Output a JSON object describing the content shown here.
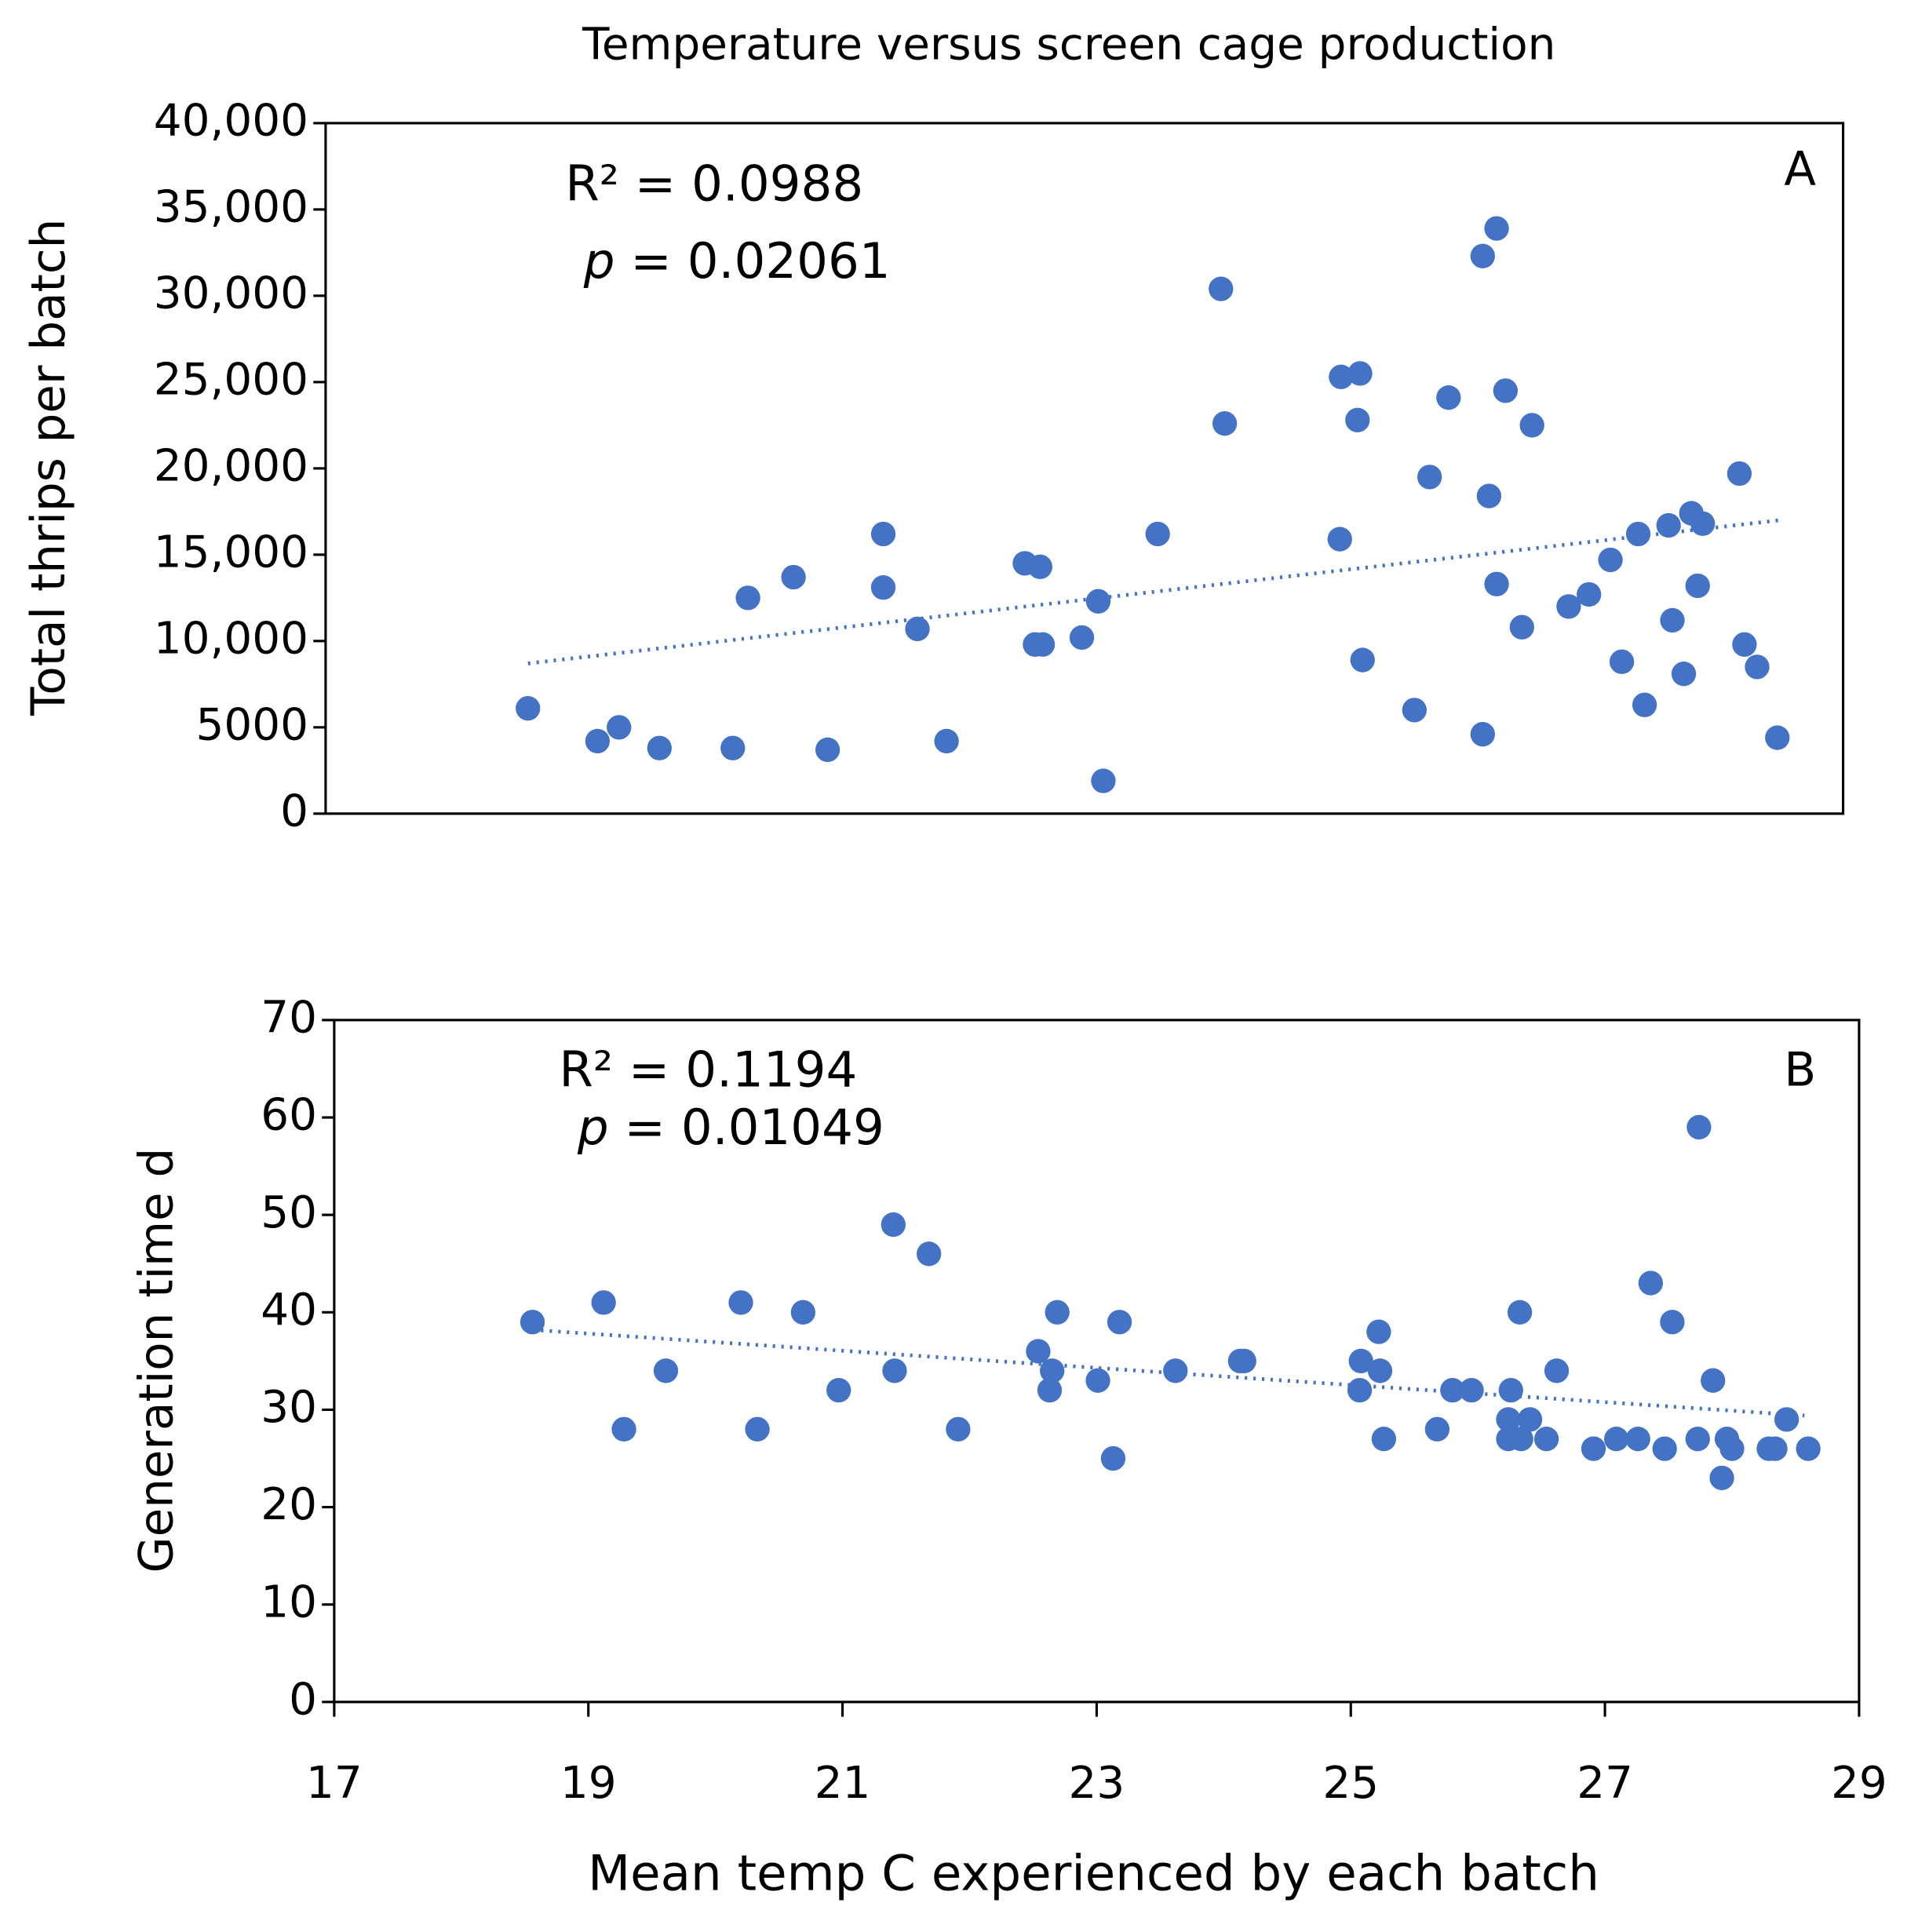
{
  "chart_data": [
    {
      "type": "scatter",
      "title": "Temperature versus screen cage production",
      "y_label": "Total thrips per batch",
      "annotations": [
        "R² = 0.0988",
        "p = 0.02061"
      ],
      "panel_label": "A",
      "color": "#4472c4",
      "xlim": [
        17,
        29
      ],
      "ylim": [
        0,
        40000
      ],
      "yticks": [
        0,
        5000,
        {
          "value": 10000,
          "label": "10,000"
        },
        {
          "value": 15000,
          "label": "15,000"
        },
        {
          "value": 20000,
          "label": "20,000"
        },
        {
          "value": 25000,
          "label": "25,000"
        },
        {
          "value": 30000,
          "label": "30,000"
        },
        {
          "value": 35000,
          "label": "35,000"
        },
        {
          "value": 40000,
          "label": "40,000"
        }
      ],
      "x": [
        18.6,
        19.15,
        19.32,
        19.64,
        20.22,
        20.34,
        20.7,
        20.97,
        21.41,
        21.41,
        21.68,
        21.91,
        22.53,
        22.65,
        22.61,
        22.67,
        22.98,
        23.11,
        23.15,
        23.58,
        24.08,
        24.11,
        25.02,
        25.03,
        25.18,
        25.16,
        25.2,
        25.61,
        25.73,
        25.88,
        26.15,
        26.26,
        26.2,
        26.15,
        26.26,
        26.33,
        26.46,
        26.54,
        26.83,
        26.99,
        27.16,
        27.25,
        27.38,
        27.43,
        27.62,
        27.65,
        27.74,
        27.8,
        27.89,
        27.85,
        28.18,
        28.22,
        28.32,
        28.48
      ],
      "values": [
        6100,
        4200,
        5000,
        3800,
        3800,
        12500,
        13700,
        3700,
        13100,
        16200,
        10700,
        4200,
        14500,
        14300,
        9800,
        9800,
        10200,
        12300,
        1900,
        16200,
        30400,
        22600,
        15900,
        25300,
        25500,
        22800,
        8900,
        6000,
        19500,
        24100,
        32300,
        33900,
        18400,
        4600,
        13300,
        24500,
        10800,
        22500,
        12000,
        12700,
        14700,
        8800,
        16200,
        6300,
        16700,
        11200,
        8100,
        17400,
        16800,
        13200,
        19700,
        9800,
        8500,
        4400
      ],
      "trendline": {
        "x": [
          18.6,
          28.5
        ],
        "values": [
          8700,
          17000
        ]
      }
    },
    {
      "type": "scatter",
      "y_label": "Generation time d",
      "x_label": "Mean temp C experienced by each batch",
      "annotations": [
        "R² = 0.1194",
        "p = 0.01049"
      ],
      "panel_label": "B",
      "color": "#4472c4",
      "xlim": [
        17,
        29
      ],
      "xticks": [
        17,
        19,
        21,
        23,
        25,
        27,
        29
      ],
      "ylim": [
        0,
        70
      ],
      "yticks": [
        0,
        10,
        20,
        30,
        40,
        50,
        60,
        70
      ],
      "x": [
        18.56,
        19.12,
        19.28,
        19.61,
        20.2,
        20.33,
        20.69,
        20.97,
        21.4,
        21.41,
        21.68,
        21.91,
        22.54,
        22.65,
        22.63,
        22.69,
        23.01,
        23.13,
        23.18,
        23.62,
        24.13,
        24.16,
        25.08,
        25.07,
        25.22,
        25.23,
        25.26,
        25.68,
        25.8,
        25.95,
        26.24,
        26.26,
        26.24,
        26.33,
        26.34,
        26.41,
        26.54,
        26.62,
        26.91,
        27.09,
        27.26,
        27.36,
        27.47,
        27.53,
        27.73,
        27.74,
        27.85,
        27.92,
        27.96,
        28.0,
        28.29,
        28.34,
        28.43,
        28.6
      ],
      "values": [
        39,
        41,
        28,
        34,
        41,
        28,
        40,
        32,
        49,
        34,
        46,
        28,
        36,
        34,
        32,
        40,
        33,
        25,
        39,
        34,
        35,
        35,
        35,
        32,
        38,
        34,
        27,
        28,
        32,
        32,
        29,
        32,
        27,
        40,
        27,
        29,
        27,
        34,
        26,
        27,
        27,
        43,
        26,
        39,
        27,
        59,
        33,
        23,
        27,
        26,
        26,
        26,
        29,
        26
      ],
      "trendline": {
        "x": [
          18.56,
          28.57
        ],
        "values": [
          38.2,
          29.4
        ]
      }
    }
  ]
}
